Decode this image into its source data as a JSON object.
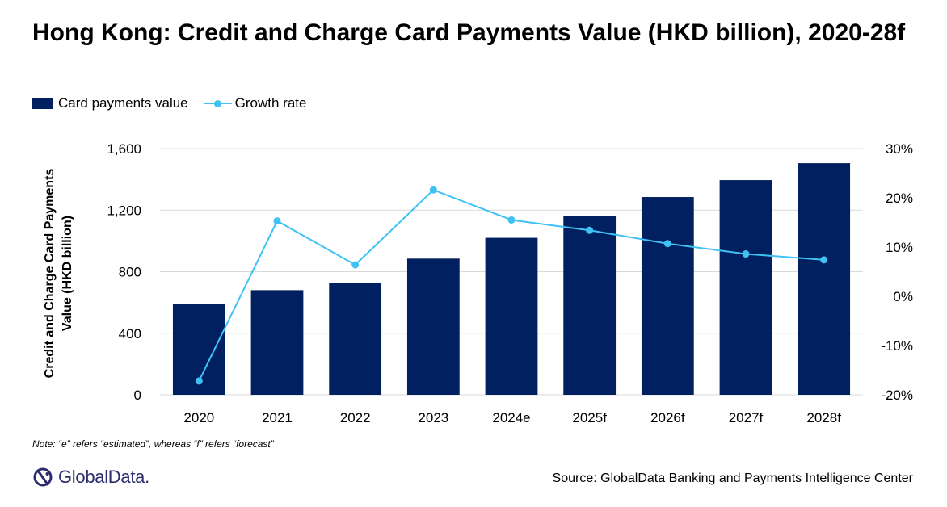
{
  "header": {
    "title": "Hong Kong: Credit and Charge Card Payments Value (HKD billion), 2020-28f"
  },
  "legend": {
    "bar_label": "Card payments value",
    "line_label": "Growth rate"
  },
  "chart_data": {
    "type": "bar",
    "title": "Hong Kong: Credit and Charge Card Payments Value (HKD billion), 2020-28f",
    "categories": [
      "2020",
      "2021",
      "2022",
      "2023",
      "2024e",
      "2025f",
      "2026f",
      "2027f",
      "2028f"
    ],
    "series": [
      {
        "name": "Card payments value",
        "type": "bar",
        "axis": "left",
        "color": "#002060",
        "values": [
          590,
          680,
          725,
          885,
          1020,
          1160,
          1285,
          1395,
          1505
        ]
      },
      {
        "name": "Growth rate",
        "type": "line",
        "axis": "right",
        "color": "#3FC1F4",
        "values": [
          -17.2,
          15.3,
          6.4,
          21.6,
          15.5,
          13.4,
          10.7,
          8.6,
          7.4
        ]
      }
    ],
    "ylabel": "Credit and Charge Card Payments Value (HKD billion)",
    "ylim": [
      0,
      1600
    ],
    "yticks": [
      "0",
      "400",
      "800",
      "1,200",
      "1,600"
    ],
    "y2lim": [
      -20,
      30
    ],
    "y2ticks": [
      "-20%",
      "-10%",
      "0%",
      "10%",
      "20%",
      "30%"
    ],
    "grid": true,
    "legend_position": "top-left"
  },
  "footer": {
    "note": "Note: “e” refers “estimated”, whereas “f” refers “forecast”",
    "logo": "GlobalData.",
    "source": "Source: GlobalData Banking and Payments Intelligence Center"
  },
  "colors": {
    "bar": "#002060",
    "line": "#3FC1F4",
    "logo": "#2d2d6e"
  },
  "icons": {
    "logo": "globaldata-logo-icon"
  }
}
